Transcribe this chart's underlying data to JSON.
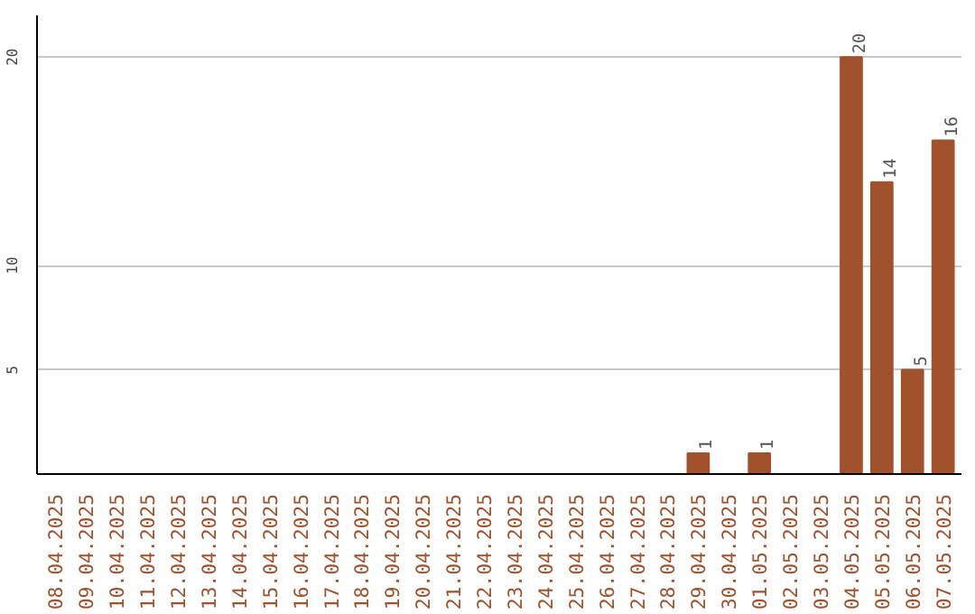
{
  "chart_data": {
    "type": "bar",
    "categories": [
      "08.04.2025",
      "09.04.2025",
      "10.04.2025",
      "11.04.2025",
      "12.04.2025",
      "13.04.2025",
      "14.04.2025",
      "15.04.2025",
      "16.04.2025",
      "17.04.2025",
      "18.04.2025",
      "19.04.2025",
      "20.04.2025",
      "21.04.2025",
      "22.04.2025",
      "23.04.2025",
      "24.04.2025",
      "25.04.2025",
      "26.04.2025",
      "27.04.2025",
      "28.04.2025",
      "29.04.2025",
      "30.04.2025",
      "01.05.2025",
      "02.05.2025",
      "03.05.2025",
      "04.05.2025",
      "05.05.2025",
      "06.05.2025",
      "07.05.2025"
    ],
    "values": [
      0,
      0,
      0,
      0,
      0,
      0,
      0,
      0,
      0,
      0,
      0,
      0,
      0,
      0,
      0,
      0,
      0,
      0,
      0,
      0,
      0,
      1,
      0,
      1,
      0,
      0,
      20,
      14,
      5,
      16
    ],
    "value_labels": [
      null,
      null,
      null,
      null,
      null,
      null,
      null,
      null,
      null,
      null,
      null,
      null,
      null,
      null,
      null,
      null,
      null,
      null,
      null,
      null,
      null,
      "1",
      null,
      "1",
      null,
      null,
      "20",
      "14",
      "5",
      "16"
    ],
    "color": "#a0522d",
    "ylim": [
      0,
      22
    ],
    "yticks": [
      5,
      10,
      20
    ],
    "grid": "y"
  }
}
